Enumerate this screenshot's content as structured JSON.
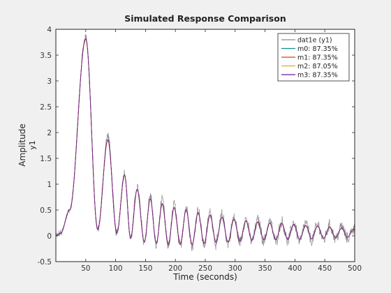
{
  "chart_data": {
    "type": "line",
    "title": "Simulated Response Comparison",
    "xlabel": "Time (seconds)",
    "ylabel": "Amplitude",
    "ylabel2": "y1",
    "xlim": [
      0,
      500
    ],
    "ylim": [
      -0.5,
      4
    ],
    "xticks": [
      50,
      100,
      150,
      200,
      250,
      300,
      350,
      400,
      450,
      500
    ],
    "yticks": [
      -0.5,
      0,
      0.5,
      1,
      1.5,
      2,
      2.5,
      3,
      3.5,
      4
    ],
    "grid": false,
    "legend_position": "top-right",
    "series": [
      {
        "name": "dat1e (y1)",
        "color": "#8c8c8c",
        "noisy": true,
        "peaks": [
          [
            0,
            0
          ],
          [
            8,
            0.05
          ],
          [
            23,
            0.5
          ],
          [
            50,
            3.86
          ],
          [
            70,
            0.12
          ],
          [
            87,
            1.94
          ],
          [
            102,
            0.05
          ],
          [
            115,
            1.22
          ],
          [
            125,
            -0.05
          ],
          [
            136,
            0.95
          ],
          [
            148,
            -0.12
          ],
          [
            158,
            0.78
          ],
          [
            168,
            -0.17
          ],
          [
            178,
            0.68
          ],
          [
            188,
            -0.2
          ],
          [
            198,
            0.6
          ],
          [
            208,
            -0.2
          ],
          [
            218,
            0.55
          ],
          [
            228,
            -0.2
          ],
          [
            238,
            0.5
          ],
          [
            248,
            -0.18
          ],
          [
            258,
            0.45
          ],
          [
            268,
            -0.15
          ],
          [
            278,
            0.4
          ],
          [
            288,
            -0.15
          ],
          [
            298,
            0.35
          ],
          [
            308,
            -0.12
          ],
          [
            318,
            0.32
          ],
          [
            328,
            -0.1
          ],
          [
            338,
            0.3
          ],
          [
            348,
            -0.1
          ],
          [
            358,
            0.28
          ],
          [
            368,
            -0.1
          ],
          [
            378,
            0.27
          ],
          [
            388,
            -0.1
          ],
          [
            398,
            0.26
          ],
          [
            408,
            -0.1
          ],
          [
            418,
            0.24
          ],
          [
            428,
            -0.08
          ],
          [
            438,
            0.22
          ],
          [
            448,
            -0.08
          ],
          [
            458,
            0.2
          ],
          [
            468,
            -0.06
          ],
          [
            478,
            0.18
          ],
          [
            488,
            -0.05
          ],
          [
            498,
            0.15
          ],
          [
            500,
            0.1
          ]
        ]
      },
      {
        "name": "m0: 87.35%",
        "color": "#0e8f8a",
        "peaks": [
          [
            0,
            0
          ],
          [
            8,
            0.05
          ],
          [
            23,
            0.5
          ],
          [
            50,
            3.82
          ],
          [
            70,
            0.12
          ],
          [
            87,
            1.86
          ],
          [
            102,
            0.05
          ],
          [
            115,
            1.18
          ],
          [
            125,
            -0.05
          ],
          [
            136,
            0.9
          ],
          [
            148,
            -0.12
          ],
          [
            158,
            0.72
          ],
          [
            168,
            -0.15
          ],
          [
            178,
            0.62
          ],
          [
            188,
            -0.17
          ],
          [
            198,
            0.55
          ],
          [
            208,
            -0.17
          ],
          [
            218,
            0.5
          ],
          [
            228,
            -0.17
          ],
          [
            238,
            0.45
          ],
          [
            248,
            -0.15
          ],
          [
            258,
            0.4
          ],
          [
            268,
            -0.13
          ],
          [
            278,
            0.36
          ],
          [
            288,
            -0.12
          ],
          [
            298,
            0.32
          ],
          [
            308,
            -0.1
          ],
          [
            318,
            0.29
          ],
          [
            328,
            -0.09
          ],
          [
            338,
            0.27
          ],
          [
            348,
            -0.08
          ],
          [
            358,
            0.25
          ],
          [
            368,
            -0.08
          ],
          [
            378,
            0.24
          ],
          [
            388,
            -0.07
          ],
          [
            398,
            0.22
          ],
          [
            408,
            -0.07
          ],
          [
            418,
            0.2
          ],
          [
            428,
            -0.06
          ],
          [
            438,
            0.19
          ],
          [
            448,
            -0.05
          ],
          [
            458,
            0.17
          ],
          [
            468,
            -0.04
          ],
          [
            478,
            0.15
          ],
          [
            488,
            -0.03
          ],
          [
            498,
            0.13
          ],
          [
            500,
            0.1
          ]
        ]
      },
      {
        "name": "m1: 87.35%",
        "color": "#d9420b",
        "peaks": [
          [
            0,
            0
          ],
          [
            8,
            0.05
          ],
          [
            23,
            0.5
          ],
          [
            50,
            3.82
          ],
          [
            70,
            0.12
          ],
          [
            87,
            1.86
          ],
          [
            102,
            0.05
          ],
          [
            115,
            1.18
          ],
          [
            125,
            -0.05
          ],
          [
            136,
            0.9
          ],
          [
            148,
            -0.12
          ],
          [
            158,
            0.72
          ],
          [
            168,
            -0.15
          ],
          [
            178,
            0.62
          ],
          [
            188,
            -0.17
          ],
          [
            198,
            0.55
          ],
          [
            208,
            -0.17
          ],
          [
            218,
            0.5
          ],
          [
            228,
            -0.17
          ],
          [
            238,
            0.45
          ],
          [
            248,
            -0.15
          ],
          [
            258,
            0.4
          ],
          [
            268,
            -0.13
          ],
          [
            278,
            0.36
          ],
          [
            288,
            -0.12
          ],
          [
            298,
            0.32
          ],
          [
            308,
            -0.1
          ],
          [
            318,
            0.29
          ],
          [
            328,
            -0.09
          ],
          [
            338,
            0.27
          ],
          [
            348,
            -0.08
          ],
          [
            358,
            0.25
          ],
          [
            368,
            -0.08
          ],
          [
            378,
            0.24
          ],
          [
            388,
            -0.07
          ],
          [
            398,
            0.22
          ],
          [
            408,
            -0.07
          ],
          [
            418,
            0.2
          ],
          [
            428,
            -0.06
          ],
          [
            438,
            0.19
          ],
          [
            448,
            -0.05
          ],
          [
            458,
            0.17
          ],
          [
            468,
            -0.04
          ],
          [
            478,
            0.15
          ],
          [
            488,
            -0.03
          ],
          [
            498,
            0.13
          ],
          [
            500,
            0.1
          ]
        ]
      },
      {
        "name": "m2: 87.05%",
        "color": "#e8a317",
        "peaks": [
          [
            0,
            0
          ],
          [
            8,
            0.05
          ],
          [
            23,
            0.5
          ],
          [
            50,
            3.8
          ],
          [
            70,
            0.12
          ],
          [
            87,
            1.84
          ],
          [
            102,
            0.05
          ],
          [
            115,
            1.17
          ],
          [
            125,
            -0.05
          ],
          [
            136,
            0.89
          ],
          [
            148,
            -0.12
          ],
          [
            158,
            0.71
          ],
          [
            168,
            -0.15
          ],
          [
            178,
            0.61
          ],
          [
            188,
            -0.17
          ],
          [
            198,
            0.54
          ],
          [
            208,
            -0.17
          ],
          [
            218,
            0.49
          ],
          [
            228,
            -0.17
          ],
          [
            238,
            0.44
          ],
          [
            248,
            -0.15
          ],
          [
            258,
            0.39
          ],
          [
            268,
            -0.13
          ],
          [
            278,
            0.35
          ],
          [
            288,
            -0.12
          ],
          [
            298,
            0.31
          ],
          [
            308,
            -0.1
          ],
          [
            318,
            0.28
          ],
          [
            328,
            -0.09
          ],
          [
            338,
            0.26
          ],
          [
            348,
            -0.08
          ],
          [
            358,
            0.24
          ],
          [
            368,
            -0.08
          ],
          [
            378,
            0.23
          ],
          [
            388,
            -0.07
          ],
          [
            398,
            0.21
          ],
          [
            408,
            -0.07
          ],
          [
            418,
            0.19
          ],
          [
            428,
            -0.06
          ],
          [
            438,
            0.18
          ],
          [
            448,
            -0.05
          ],
          [
            458,
            0.16
          ],
          [
            468,
            -0.04
          ],
          [
            478,
            0.14
          ],
          [
            488,
            -0.03
          ],
          [
            498,
            0.12
          ],
          [
            500,
            0.1
          ]
        ]
      },
      {
        "name": "m3: 87.35%",
        "color": "#6a1b9a",
        "peaks": [
          [
            0,
            0
          ],
          [
            8,
            0.05
          ],
          [
            23,
            0.5
          ],
          [
            50,
            3.82
          ],
          [
            70,
            0.12
          ],
          [
            87,
            1.86
          ],
          [
            102,
            0.05
          ],
          [
            115,
            1.18
          ],
          [
            125,
            -0.05
          ],
          [
            136,
            0.9
          ],
          [
            148,
            -0.12
          ],
          [
            158,
            0.72
          ],
          [
            168,
            -0.15
          ],
          [
            178,
            0.62
          ],
          [
            188,
            -0.17
          ],
          [
            198,
            0.55
          ],
          [
            208,
            -0.17
          ],
          [
            218,
            0.5
          ],
          [
            228,
            -0.17
          ],
          [
            238,
            0.45
          ],
          [
            248,
            -0.15
          ],
          [
            258,
            0.4
          ],
          [
            268,
            -0.13
          ],
          [
            278,
            0.36
          ],
          [
            288,
            -0.12
          ],
          [
            298,
            0.32
          ],
          [
            308,
            -0.1
          ],
          [
            318,
            0.29
          ],
          [
            328,
            -0.09
          ],
          [
            338,
            0.27
          ],
          [
            348,
            -0.08
          ],
          [
            358,
            0.25
          ],
          [
            368,
            -0.08
          ],
          [
            378,
            0.24
          ],
          [
            388,
            -0.07
          ],
          [
            398,
            0.22
          ],
          [
            408,
            -0.07
          ],
          [
            418,
            0.2
          ],
          [
            428,
            -0.06
          ],
          [
            438,
            0.19
          ],
          [
            448,
            -0.05
          ],
          [
            458,
            0.17
          ],
          [
            468,
            -0.04
          ],
          [
            478,
            0.15
          ],
          [
            488,
            -0.03
          ],
          [
            498,
            0.13
          ],
          [
            500,
            0.1
          ]
        ]
      }
    ]
  }
}
